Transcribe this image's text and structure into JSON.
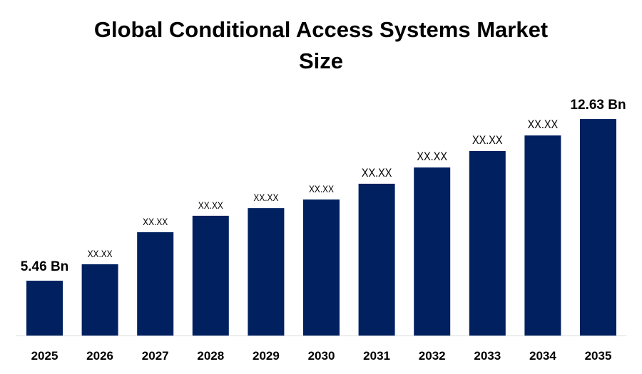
{
  "chart_data": {
    "type": "bar",
    "title_lines": [
      "Global Conditional Access Systems Market",
      "Size"
    ],
    "xlabel": "",
    "ylabel": "",
    "categories": [
      "2025",
      "2026",
      "2027",
      "2028",
      "2029",
      "2030",
      "2031",
      "2032",
      "2033",
      "2034",
      "2035"
    ],
    "values": [
      5.46,
      6.19,
      7.61,
      8.34,
      8.68,
      9.06,
      9.76,
      10.48,
      11.21,
      11.9,
      12.63
    ],
    "data_labels": [
      "5.46 Bn",
      "XX.XX",
      "XX.XX",
      "XX.XX",
      "XX.XX",
      "XX.XX",
      "XX.XX",
      "XX.XX",
      "XX.XX",
      "XX.XX",
      "12.63 Bn"
    ],
    "ylim": [
      3.03,
      13.5
    ],
    "grid": false,
    "legend": "none",
    "bar_color": "#002060"
  }
}
